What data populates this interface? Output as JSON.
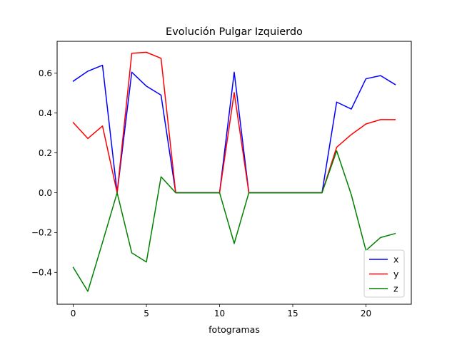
{
  "chart_data": {
    "type": "line",
    "title": "Evolución Pulgar Izquierdo",
    "xlabel": "fotogramas",
    "ylabel": "",
    "xlim": [
      -1.1,
      23.1
    ],
    "ylim": [
      -0.56,
      0.76
    ],
    "xticks": [
      0,
      5,
      10,
      15,
      20
    ],
    "yticks": [
      -0.4,
      -0.2,
      0.0,
      0.2,
      0.4,
      0.6
    ],
    "ytick_labels": [
      "−0.4",
      "−0.2",
      "0.0",
      "0.2",
      "0.4",
      "0.6"
    ],
    "grid": false,
    "legend_position": "lower-right",
    "x": [
      0,
      1,
      2,
      3,
      4,
      5,
      6,
      7,
      8,
      9,
      10,
      11,
      12,
      13,
      14,
      15,
      16,
      17,
      18,
      19,
      20,
      21,
      22
    ],
    "series": [
      {
        "name": "x",
        "color": "#0000ff",
        "values": [
          0.56,
          0.61,
          0.64,
          0.0,
          0.605,
          0.535,
          0.49,
          0.0,
          0.0,
          0.0,
          0.0,
          0.605,
          0.0,
          0.0,
          0.0,
          0.0,
          0.0,
          0.0,
          0.455,
          0.42,
          0.572,
          0.588,
          0.543
        ]
      },
      {
        "name": "y",
        "color": "#ff0000",
        "values": [
          0.352,
          0.272,
          0.335,
          0.0,
          0.7,
          0.705,
          0.675,
          0.0,
          0.0,
          0.0,
          0.0,
          0.503,
          0.0,
          0.0,
          0.0,
          0.0,
          0.0,
          0.0,
          0.228,
          0.292,
          0.345,
          0.367,
          0.367
        ]
      },
      {
        "name": "z",
        "color": "#008000",
        "values": [
          -0.375,
          -0.495,
          -0.25,
          0.0,
          -0.302,
          -0.348,
          0.08,
          0.0,
          0.0,
          0.0,
          0.0,
          -0.255,
          0.0,
          0.0,
          0.0,
          0.0,
          0.0,
          0.0,
          0.21,
          -0.01,
          -0.29,
          -0.225,
          -0.205
        ]
      }
    ]
  }
}
